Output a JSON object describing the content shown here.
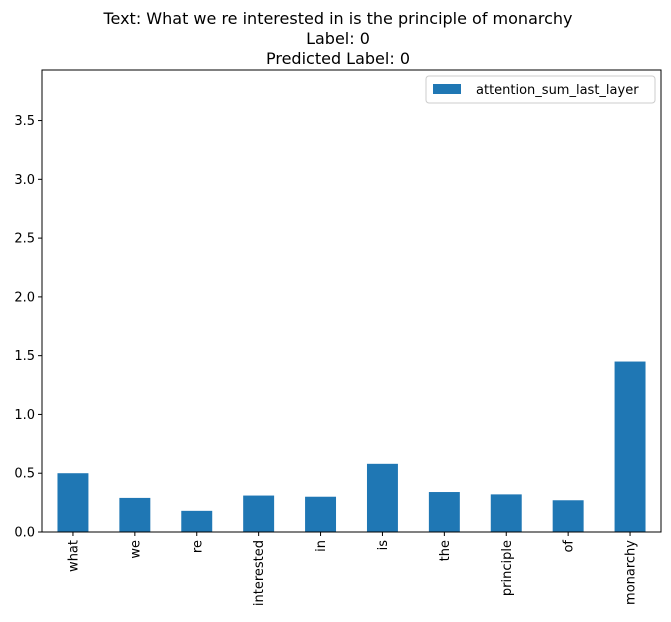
{
  "chart_data": {
    "type": "bar",
    "title_lines": [
      "Text: What we re interested in is the principle of monarchy",
      "Label: 0",
      "Predicted Label: 0"
    ],
    "categories": [
      "what",
      "we",
      "re",
      "interested",
      "in",
      "is",
      "the",
      "principle",
      "of",
      "monarchy"
    ],
    "series": [
      {
        "name": "attention_sum_last_layer",
        "color": "#1f77b4",
        "values": [
          0.5,
          0.29,
          0.18,
          0.31,
          0.3,
          0.58,
          0.34,
          0.32,
          0.27,
          1.45
        ]
      }
    ],
    "yticks": [
      0.0,
      0.5,
      1.0,
      1.5,
      2.0,
      2.5,
      3.0,
      3.5
    ],
    "ytick_labels": [
      "0.0",
      "0.5",
      "1.0",
      "1.5",
      "2.0",
      "2.5",
      "3.0",
      "3.5"
    ],
    "ylim": [
      0,
      3.93
    ],
    "xlabel": "",
    "ylabel": "",
    "legend_position": "upper right",
    "grid": false
  }
}
